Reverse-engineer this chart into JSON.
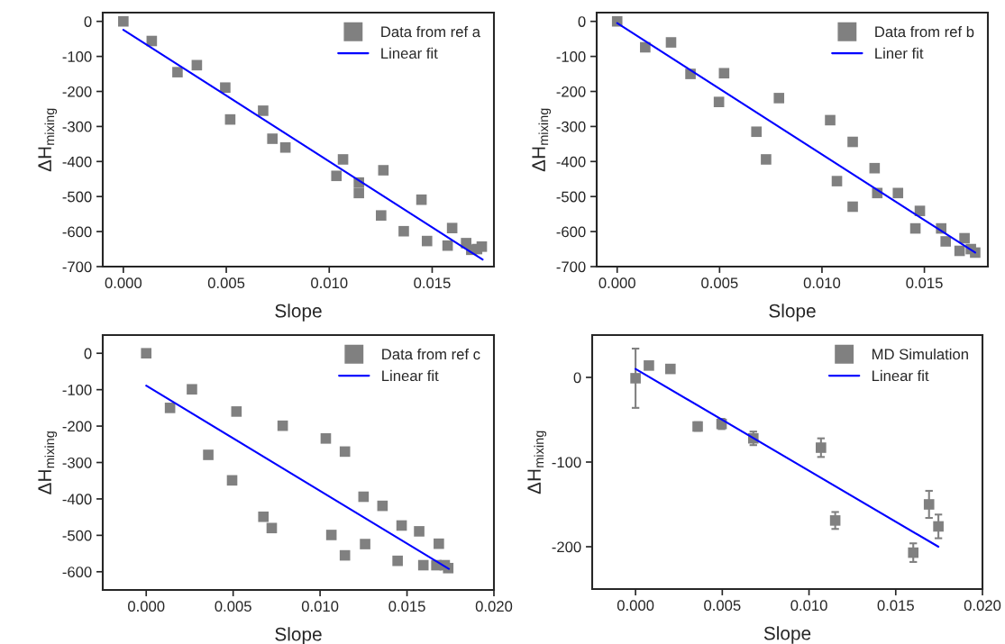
{
  "chart_data": [
    {
      "type": "scatter",
      "xlabel": "Slope",
      "ylabel": "ΔH$_{mixing}$",
      "xlim": [
        -0.001,
        0.018
      ],
      "ylim": [
        -700,
        25
      ],
      "xticks": [
        {
          "value": 0,
          "label": "0.000"
        },
        {
          "value": 0.005,
          "label": "0.005"
        },
        {
          "value": 0.01,
          "label": "0.010"
        },
        {
          "value": 0.015,
          "label": "0.015"
        }
      ],
      "yticks": [
        -700,
        -600,
        -500,
        -400,
        -300,
        -200,
        -100,
        0
      ],
      "legend": "top right",
      "grid": false,
      "series": [
        {
          "name": "Data from ref a",
          "marker": "square",
          "color": "#808080",
          "x": [
            0,
            0.00138,
            0.00263,
            0.00357,
            0.00495,
            0.00519,
            0.00679,
            0.00724,
            0.00787,
            0.01035,
            0.01067,
            0.01144,
            0.01144,
            0.01263,
            0.01252,
            0.01362,
            0.01448,
            0.01475,
            0.01575,
            0.01597,
            0.01665,
            0.0169,
            0.01718,
            0.01741
          ],
          "values": [
            0,
            -56,
            -145,
            -125,
            -189,
            -280,
            -255,
            -335,
            -360,
            -441,
            -394,
            -460,
            -490,
            -425,
            -554,
            -599,
            -509,
            -627,
            -640,
            -590,
            -633,
            -652,
            -650,
            -643
          ]
        },
        {
          "name": "Linear fit",
          "type": "line",
          "color": "#0000ff",
          "x": [
            0,
            0.01745
          ],
          "values": [
            -24,
            -680
          ]
        }
      ]
    },
    {
      "type": "scatter",
      "xlabel": "Slope",
      "ylabel": "ΔH$_{mixing}$",
      "xlim": [
        -0.001,
        0.0181
      ],
      "ylim": [
        -700,
        25
      ],
      "xticks": [
        {
          "value": 0,
          "label": "0.000"
        },
        {
          "value": 0.005,
          "label": "0.005"
        },
        {
          "value": 0.01,
          "label": "0.010"
        },
        {
          "value": 0.015,
          "label": "0.015"
        }
      ],
      "yticks": [
        -700,
        -600,
        -500,
        -400,
        -300,
        -200,
        -100,
        0
      ],
      "legend": "top right",
      "grid": false,
      "series": [
        {
          "name": "Data from ref b",
          "marker": "square",
          "color": "#808080",
          "x": [
            0,
            0.00137,
            0.00263,
            0.00358,
            0.00522,
            0.00497,
            0.0068,
            0.00727,
            0.0079,
            0.0104,
            0.01073,
            0.0115,
            0.0115,
            0.01257,
            0.0127,
            0.01371,
            0.01456,
            0.01478,
            0.01582,
            0.01604,
            0.01672,
            0.01696,
            0.01727,
            0.01748
          ],
          "values": [
            0,
            -74,
            -60,
            -150,
            -148,
            -230,
            -315,
            -394,
            -219,
            -282,
            -456,
            -344,
            -529,
            -419,
            -490,
            -490,
            -591,
            -541,
            -591,
            -628,
            -655,
            -619,
            -650,
            -660
          ]
        },
        {
          "name": "Liner fit",
          "type": "line",
          "color": "#0000ff",
          "x": [
            0,
            0.01748
          ],
          "values": [
            -5,
            -660
          ]
        }
      ]
    },
    {
      "type": "scatter",
      "xlabel": "Slope",
      "ylabel": "ΔH$_{mixing}$",
      "xlim": [
        -0.0025,
        0.02
      ],
      "ylim": [
        -650,
        50
      ],
      "xticks": [
        {
          "value": 0,
          "label": "0.000"
        },
        {
          "value": 0.005,
          "label": "0.005"
        },
        {
          "value": 0.01,
          "label": "0.010"
        },
        {
          "value": 0.015,
          "label": "0.015"
        },
        {
          "value": 0.02,
          "label": "0.020"
        }
      ],
      "yticks": [
        -600,
        -500,
        -400,
        -300,
        -200,
        -100,
        0
      ],
      "legend": "top right",
      "grid": false,
      "series": [
        {
          "name": "Data from ref c",
          "marker": "square",
          "color": "#808080",
          "x": [
            0,
            0.00137,
            0.00263,
            0.00357,
            0.00519,
            0.00494,
            0.00785,
            0.00674,
            0.00722,
            0.01033,
            0.01065,
            0.01143,
            0.01143,
            0.0125,
            0.01259,
            0.01359,
            0.01446,
            0.01469,
            0.0157,
            0.01594,
            0.01669,
            0.01683,
            0.01717,
            0.01737
          ],
          "values": [
            0,
            -150,
            -99,
            -279,
            -160,
            -349,
            -199,
            -449,
            -480,
            -234,
            -499,
            -270,
            -555,
            -394,
            -524,
            -419,
            -570,
            -473,
            -489,
            -582,
            -582,
            -523,
            -582,
            -590
          ]
        },
        {
          "name": "Linear fit",
          "type": "line",
          "color": "#0000ff",
          "x": [
            0,
            0.01741
          ],
          "values": [
            -89,
            -592
          ]
        }
      ]
    },
    {
      "type": "scatter",
      "xlabel": "Slope",
      "ylabel": "ΔH$_{mixing}$",
      "xlim": [
        -0.0025,
        0.02
      ],
      "ylim": [
        -250,
        50
      ],
      "xticks": [
        {
          "value": 0,
          "label": "0.000"
        },
        {
          "value": 0.005,
          "label": "0.005"
        },
        {
          "value": 0.01,
          "label": "0.010"
        },
        {
          "value": 0.015,
          "label": "0.015"
        },
        {
          "value": 0.02,
          "label": "0.020"
        }
      ],
      "yticks": [
        -200,
        -100,
        0
      ],
      "legend": "top right",
      "grid": false,
      "series": [
        {
          "name": "MD Simulation",
          "marker": "square",
          "color": "#808080",
          "x": [
            0,
            0.00077,
            0.00201,
            0.00358,
            0.00496,
            0.00679,
            0.01069,
            0.01151,
            0.01601,
            0.01692,
            0.01746
          ],
          "values": [
            -1,
            14,
            10,
            -58,
            -55,
            -72,
            -83,
            -169,
            -207,
            -150,
            -176
          ],
          "errors": [
            35,
            3,
            4,
            5,
            6,
            8,
            11,
            10,
            11,
            16,
            14
          ]
        },
        {
          "name": "Linear fit",
          "type": "line",
          "color": "#0000ff",
          "x": [
            0,
            0.01746
          ],
          "values": [
            10,
            -200
          ]
        }
      ]
    }
  ]
}
